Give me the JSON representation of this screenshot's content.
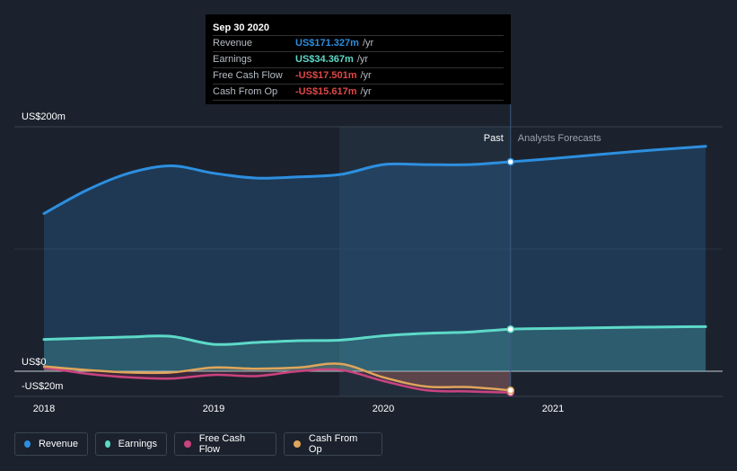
{
  "chart_data": {
    "type": "area",
    "y_unit_labels": [
      "US$200m",
      "US$0",
      "-US$20m"
    ],
    "ylim": [
      -20,
      200
    ],
    "x_ticks": [
      {
        "label": "2018",
        "x": 2018.0
      },
      {
        "label": "2019",
        "x": 2019.0
      },
      {
        "label": "2020",
        "x": 2020.0
      },
      {
        "label": "2021",
        "x": 2021.0
      }
    ],
    "past_label": "Past",
    "forecast_label": "Analysts Forecasts",
    "divider_x": 2020.75,
    "series": [
      {
        "name": "Revenue",
        "color": "#2d8fe0",
        "points": [
          [
            2018.0,
            129
          ],
          [
            2018.25,
            148
          ],
          [
            2018.5,
            162
          ],
          [
            2018.75,
            168
          ],
          [
            2019.0,
            162
          ],
          [
            2019.25,
            158
          ],
          [
            2019.5,
            159
          ],
          [
            2019.75,
            161
          ],
          [
            2020.0,
            169
          ],
          [
            2020.25,
            169
          ],
          [
            2020.5,
            169
          ],
          [
            2020.75,
            171.3
          ],
          [
            2021.0,
            174
          ],
          [
            2021.5,
            180
          ],
          [
            2021.9,
            184
          ]
        ]
      },
      {
        "name": "Earnings",
        "color": "#5dd9c8",
        "points": [
          [
            2018.0,
            26
          ],
          [
            2018.25,
            27
          ],
          [
            2018.5,
            28
          ],
          [
            2018.75,
            28.5
          ],
          [
            2019.0,
            22
          ],
          [
            2019.25,
            23.5
          ],
          [
            2019.5,
            25
          ],
          [
            2019.75,
            25.5
          ],
          [
            2020.0,
            29
          ],
          [
            2020.25,
            31
          ],
          [
            2020.5,
            32
          ],
          [
            2020.75,
            34.4
          ],
          [
            2021.0,
            35
          ],
          [
            2021.5,
            36
          ],
          [
            2021.9,
            36.5
          ]
        ]
      },
      {
        "name": "Free Cash Flow",
        "color": "#c9437f",
        "points": [
          [
            2018.0,
            3
          ],
          [
            2018.25,
            -2
          ],
          [
            2018.5,
            -5
          ],
          [
            2018.75,
            -6
          ],
          [
            2019.0,
            -3
          ],
          [
            2019.25,
            -4
          ],
          [
            2019.5,
            0
          ],
          [
            2019.75,
            1
          ],
          [
            2020.0,
            -8
          ],
          [
            2020.25,
            -15.5
          ],
          [
            2020.5,
            -16.5
          ],
          [
            2020.75,
            -17.5
          ]
        ]
      },
      {
        "name": "Cash From Op",
        "color": "#e0a55b",
        "points": [
          [
            2018.0,
            4
          ],
          [
            2018.25,
            1
          ],
          [
            2018.5,
            -1
          ],
          [
            2018.75,
            -1
          ],
          [
            2019.0,
            3
          ],
          [
            2019.25,
            2
          ],
          [
            2019.5,
            3
          ],
          [
            2019.75,
            6
          ],
          [
            2020.0,
            -5
          ],
          [
            2020.25,
            -12.5
          ],
          [
            2020.5,
            -13
          ],
          [
            2020.75,
            -15.6
          ]
        ]
      }
    ]
  },
  "tooltip": {
    "date": "Sep 30 2020",
    "rows": [
      {
        "label": "Revenue",
        "value": "US$171.327m",
        "unit": "/yr",
        "color": "#2d8fe0"
      },
      {
        "label": "Earnings",
        "value": "US$34.367m",
        "unit": "/yr",
        "color": "#5dd9c8"
      },
      {
        "label": "Free Cash Flow",
        "value": "-US$17.501m",
        "unit": "/yr",
        "color": "#e04848"
      },
      {
        "label": "Cash From Op",
        "value": "-US$15.617m",
        "unit": "/yr",
        "color": "#e04848"
      }
    ]
  },
  "legend": [
    {
      "label": "Revenue",
      "color": "#2d8fe0"
    },
    {
      "label": "Earnings",
      "color": "#5dd9c8"
    },
    {
      "label": "Free Cash Flow",
      "color": "#c9437f"
    },
    {
      "label": "Cash From Op",
      "color": "#e0a55b"
    }
  ]
}
